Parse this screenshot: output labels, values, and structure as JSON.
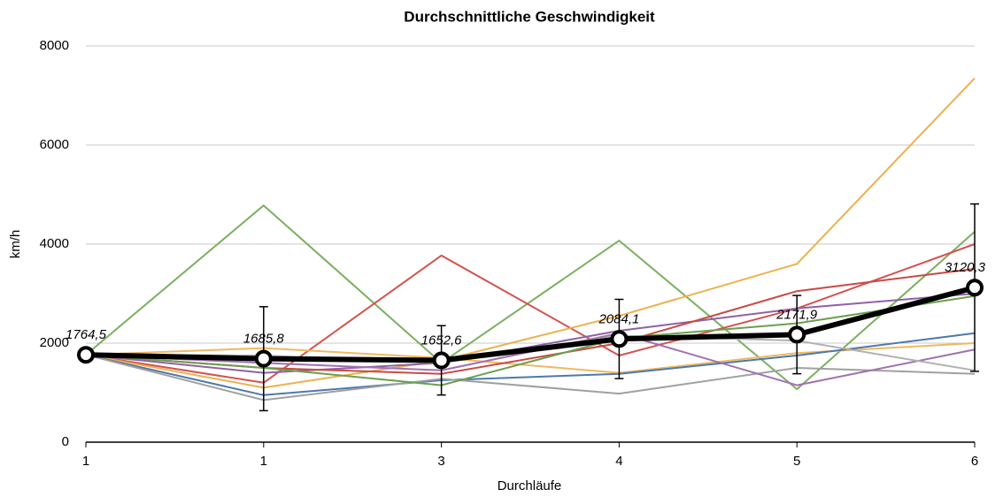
{
  "chart_data": {
    "type": "line",
    "title": "Durchschnittliche Geschwindigkeit",
    "x_label": "Durchläufe",
    "y_label": "km/h",
    "categories": [
      "1",
      "1",
      "3",
      "4",
      "5",
      "6"
    ],
    "ylim": [
      0,
      8000
    ],
    "yticks": [
      0,
      2000,
      4000,
      6000,
      8000
    ],
    "grid": true,
    "series": [
      {
        "color": "#7bb061",
        "values": [
          1764,
          4780,
          1600,
          4070,
          1070,
          4250
        ]
      },
      {
        "color": "#d2544f",
        "values": [
          1764,
          1200,
          3770,
          1750,
          2700,
          4000
        ]
      },
      {
        "color": "#ebb14f",
        "values": [
          1764,
          1100,
          1650,
          2550,
          3600,
          7350
        ]
      },
      {
        "color": "#f0b860",
        "values": [
          1764,
          1900,
          1700,
          1400,
          1800,
          2000
        ]
      },
      {
        "color": "#4c79ae",
        "values": [
          1764,
          950,
          1250,
          1380,
          1750,
          2200
        ]
      },
      {
        "color": "#a0a0a0",
        "values": [
          1764,
          850,
          1280,
          980,
          1500,
          1380
        ]
      },
      {
        "color": "#9061a3",
        "values": [
          1764,
          1400,
          1600,
          2250,
          2700,
          3000
        ]
      },
      {
        "color": "#a070b0",
        "values": [
          1764,
          1600,
          1450,
          2200,
          1150,
          1870
        ]
      },
      {
        "color": "#c84a44",
        "values": [
          1764,
          1500,
          1380,
          2000,
          3050,
          3500
        ]
      },
      {
        "color": "#6aa04f",
        "values": [
          1764,
          1500,
          1150,
          2100,
          2400,
          2950
        ]
      },
      {
        "color": "#b0b0b0",
        "values": [
          1764,
          1750,
          1600,
          2150,
          2050,
          1450
        ]
      },
      {
        "color": "#000000",
        "values": [
          1764.5,
          1685.8,
          1652.6,
          2084.1,
          2171.9,
          3120.3
        ],
        "value_labels": [
          "1764,5",
          "1685,8",
          "1652,6",
          "2084,1",
          "2171,9",
          "3120,3"
        ],
        "errors": [
          null,
          1050,
          700,
          800,
          790,
          1690
        ]
      }
    ]
  }
}
